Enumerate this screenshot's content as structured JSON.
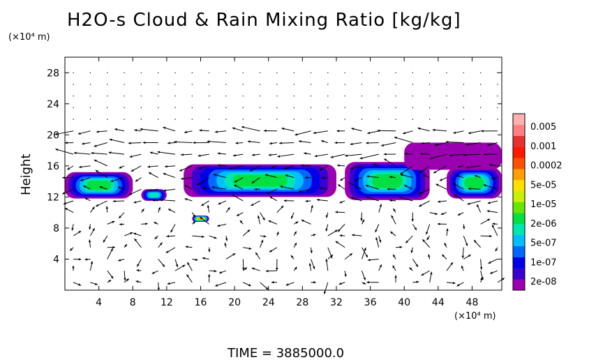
{
  "chart_data": {
    "type": "heatmap",
    "title": "H2O-s Cloud & Rain Mixing Ratio [kg/kg]",
    "ylabel": "Height",
    "y_unit": "(×10⁴ m)",
    "x_unit": "(×10⁴ m)",
    "footer": "TIME = 3885000.0",
    "xlim": [
      0,
      51.5
    ],
    "ylim": [
      0,
      30
    ],
    "xticks": [
      4,
      8,
      12,
      16,
      20,
      24,
      28,
      32,
      36,
      40,
      44,
      48
    ],
    "yticks": [
      4,
      8,
      12,
      16,
      20,
      24,
      28
    ],
    "colorbar": {
      "labels": [
        "0.005",
        "0.001",
        "0.0002",
        "5e-05",
        "1e-05",
        "2e-06",
        "5e-07",
        "1e-07",
        "2e-08"
      ],
      "colors": [
        "#9b00b0",
        "#3a00d0",
        "#0000e8",
        "#0068ff",
        "#00bfff",
        "#00e6b0",
        "#00e040",
        "#66e600",
        "#c8f000",
        "#ffe000",
        "#ffa000",
        "#ff5000",
        "#ff1800",
        "#e83030",
        "#ff8080",
        "#ffb0b0"
      ]
    },
    "cloud_regions": [
      {
        "x": [
          0,
          8
        ],
        "y": [
          11.8,
          15.2
        ],
        "level": "1e-05"
      },
      {
        "x": [
          9,
          12
        ],
        "y": [
          11.5,
          13
        ],
        "level": "2e-06"
      },
      {
        "x": [
          14,
          32
        ],
        "y": [
          12,
          16.2
        ],
        "level": "1e-05"
      },
      {
        "x": [
          33,
          43
        ],
        "y": [
          11.6,
          16.5
        ],
        "level": "1e-05"
      },
      {
        "x": [
          45,
          51.5
        ],
        "y": [
          11.8,
          15.8
        ],
        "level": "1e-05"
      },
      {
        "x": [
          15,
          17
        ],
        "y": [
          8.8,
          9.6
        ],
        "level": "0.0002"
      },
      {
        "x": [
          40,
          51.5
        ],
        "y": [
          15.5,
          19
        ],
        "level": "2e-08"
      }
    ]
  }
}
